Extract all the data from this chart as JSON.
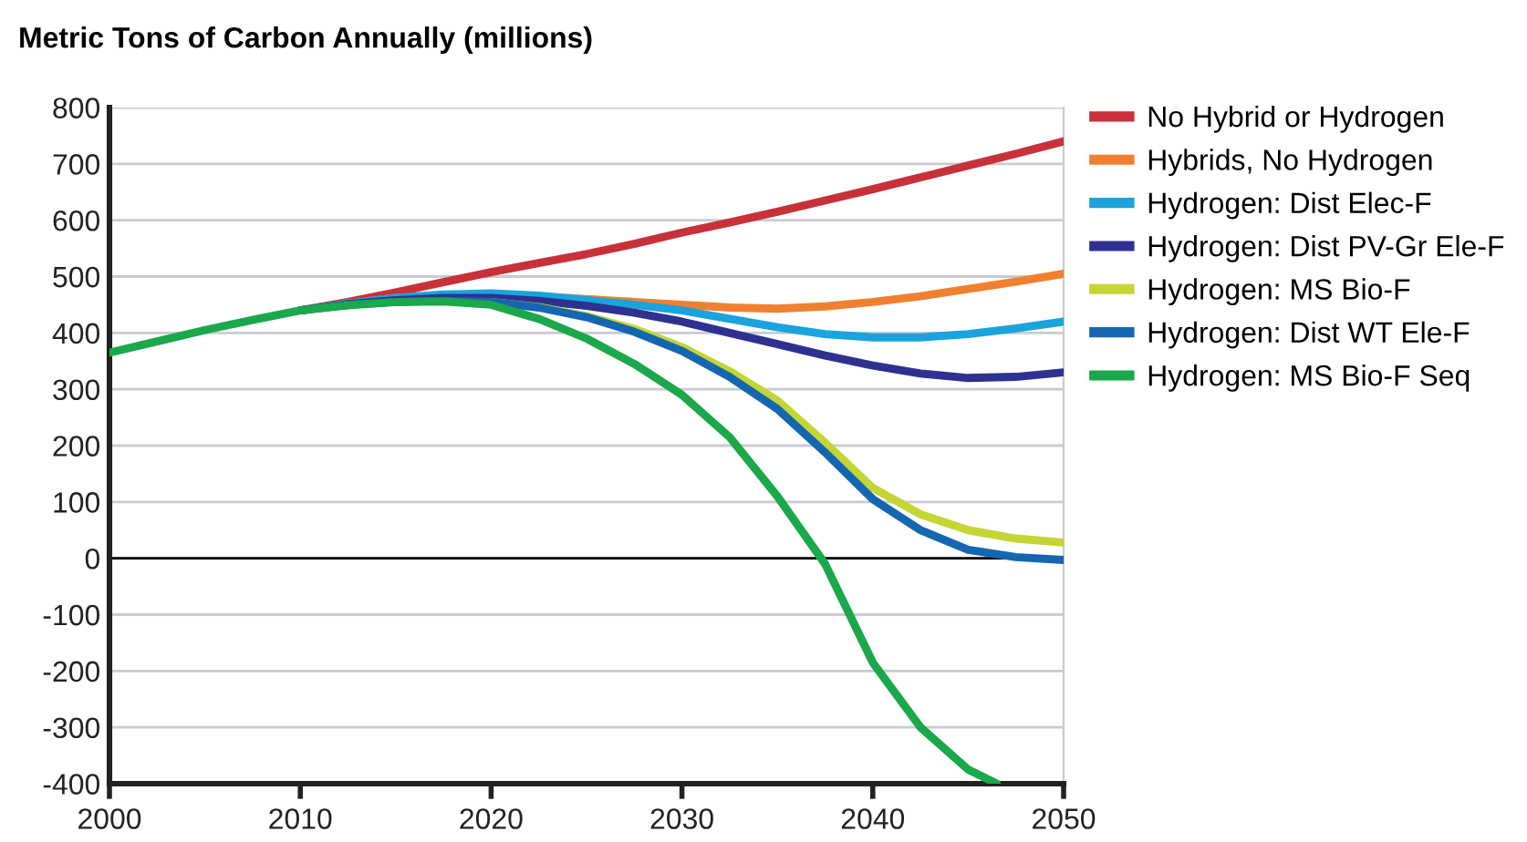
{
  "chart_data": {
    "type": "line",
    "title": "Metric Tons of Carbon Annually (millions)",
    "series": [
      {
        "name": "No Hybrid or Hydrogen",
        "color": "#c8313a",
        "x": [
          2010,
          2012.5,
          2015,
          2017.5,
          2020,
          2022.5,
          2025,
          2027.5,
          2030,
          2032.5,
          2035,
          2037.5,
          2040,
          2042.5,
          2045,
          2047.5,
          2050
        ],
        "values": [
          440,
          455,
          472,
          490,
          508,
          524,
          540,
          558,
          578,
          596,
          615,
          635,
          655,
          676,
          697,
          718,
          740
        ]
      },
      {
        "name": "Hybrids, No Hydrogen",
        "color": "#f08030",
        "x": [
          2010,
          2012.5,
          2015,
          2017.5,
          2020,
          2022.5,
          2025,
          2027.5,
          2030,
          2032.5,
          2035,
          2037.5,
          2040,
          2042.5,
          2045,
          2047.5,
          2050
        ],
        "values": [
          440,
          452,
          462,
          467,
          468,
          465,
          460,
          455,
          450,
          445,
          443,
          447,
          455,
          465,
          478,
          491,
          505
        ]
      },
      {
        "name": "Hydrogen: Dist Elec-F",
        "color": "#1aa3dc",
        "x": [
          2010,
          2012.5,
          2015,
          2017.5,
          2020,
          2022.5,
          2025,
          2027.5,
          2030,
          2032.5,
          2035,
          2037.5,
          2040,
          2042.5,
          2045,
          2047.5,
          2050
        ],
        "values": [
          440,
          452,
          462,
          468,
          470,
          466,
          458,
          450,
          440,
          425,
          410,
          398,
          392,
          392,
          398,
          408,
          420
        ]
      },
      {
        "name": "Hydrogen: Dist PV-Gr Ele-F",
        "color": "#2e3190",
        "x": [
          2010,
          2012.5,
          2015,
          2017.5,
          2020,
          2022.5,
          2025,
          2027.5,
          2030,
          2032.5,
          2035,
          2037.5,
          2040,
          2042.5,
          2045,
          2047.5,
          2050
        ],
        "values": [
          440,
          451,
          458,
          462,
          462,
          457,
          448,
          436,
          420,
          400,
          380,
          360,
          342,
          328,
          320,
          322,
          330
        ]
      },
      {
        "name": "Hydrogen: MS Bio-F",
        "color": "#c3d633",
        "x": [
          2020,
          2022.5,
          2025,
          2027.5,
          2030,
          2032.5,
          2035,
          2037.5,
          2040,
          2042.5,
          2045,
          2047.5,
          2050
        ],
        "values": [
          455,
          446,
          430,
          407,
          375,
          332,
          280,
          205,
          125,
          78,
          50,
          35,
          28
        ]
      },
      {
        "name": "Hydrogen: Dist WT Ele-F",
        "color": "#1566b0",
        "x": [
          2010,
          2012.5,
          2015,
          2017.5,
          2020,
          2022.5,
          2025,
          2027.5,
          2030,
          2032.5,
          2035,
          2037.5,
          2040,
          2042.5,
          2045,
          2047.5,
          2050
        ],
        "values": [
          440,
          450,
          455,
          457,
          455,
          445,
          428,
          402,
          368,
          322,
          265,
          188,
          105,
          50,
          15,
          2,
          -3
        ]
      },
      {
        "name": "Hydrogen: MS Bio-F Seq",
        "color": "#1aa84a",
        "x": [
          2000,
          2002.5,
          2005,
          2007.5,
          2010,
          2012.5,
          2015,
          2017.5,
          2020,
          2022.5,
          2025,
          2027.5,
          2030,
          2032.5,
          2035,
          2037.5,
          2040,
          2042.5,
          2045,
          2046.5
        ],
        "values": [
          365,
          385,
          405,
          423,
          440,
          449,
          455,
          456,
          450,
          425,
          390,
          345,
          290,
          215,
          110,
          -10,
          -185,
          -300,
          -375,
          -400
        ]
      }
    ],
    "xlim": [
      2000,
      2050
    ],
    "xticks": [
      2000,
      2010,
      2020,
      2030,
      2040,
      2050
    ],
    "ylim": [
      -400,
      800
    ],
    "yticks": [
      -400,
      -300,
      -200,
      -100,
      0,
      100,
      200,
      300,
      400,
      500,
      600,
      700,
      800
    ],
    "ref_lines": [
      {
        "axis": "y",
        "value": 0,
        "color": "#000000"
      }
    ],
    "grid": "y",
    "legend": "right",
    "marker": "none",
    "line_style": "solid"
  }
}
